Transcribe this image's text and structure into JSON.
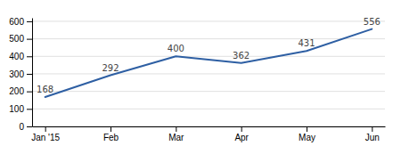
{
  "chart_data": {
    "type": "line",
    "categories": [
      "Jan '15",
      "Feb",
      "Mar",
      "Apr",
      "May",
      "Jun"
    ],
    "values": [
      168,
      292,
      400,
      362,
      431,
      556
    ],
    "color": "#2e5fa3",
    "ylim": [
      0,
      620
    ],
    "yticks": [
      0,
      100,
      200,
      300,
      400,
      500,
      600
    ],
    "grid": true,
    "data_labels": true
  }
}
